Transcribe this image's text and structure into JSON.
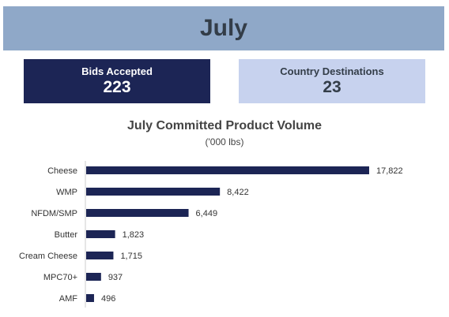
{
  "header": {
    "title": "July"
  },
  "cards": {
    "bids": {
      "label": "Bids Accepted",
      "value": "223"
    },
    "countries": {
      "label": "Country Destinations",
      "value": "23"
    }
  },
  "colors": {
    "bar": "#1c2555",
    "banner": "#8fa8c8",
    "card_dark": "#1c2555",
    "card_light": "#c7d2ee"
  },
  "chart_data": {
    "type": "bar",
    "orientation": "horizontal",
    "title": "July Committed Product Volume",
    "subtitle": "('000 lbs)",
    "categories": [
      "Cheese",
      "WMP",
      "NFDM/SMP",
      "Butter",
      "Cream Cheese",
      "MPC70+",
      "AMF"
    ],
    "values": [
      17822,
      8422,
      6449,
      1823,
      1715,
      937,
      496
    ],
    "value_labels": [
      "17,822",
      "8,422",
      "6,449",
      "1,823",
      "1,715",
      "937",
      "496"
    ],
    "xlim": [
      0,
      17822
    ],
    "grid": false
  }
}
